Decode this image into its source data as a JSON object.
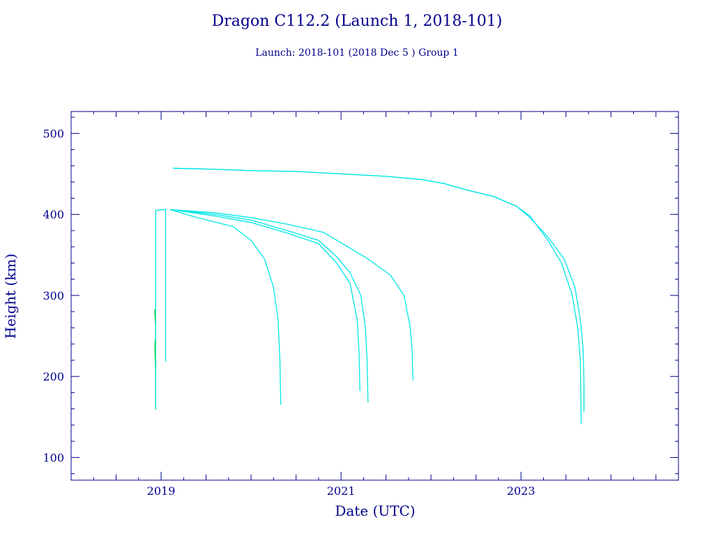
{
  "chart_data": {
    "type": "line",
    "title": "Dragon C112.2 (Launch 1, 2018-101)",
    "subtitle": "Launch: 2018-101  (2018 Dec  5 )  Group 1",
    "xlabel": "Date (UTC)",
    "ylabel": "Height (km)",
    "xlim": [
      2018.0,
      2024.75
    ],
    "ylim": [
      72,
      527
    ],
    "x_ticks": [
      2019,
      2021,
      2023
    ],
    "x_tick_labels": [
      "2019",
      "2021",
      "2023"
    ],
    "y_ticks": [
      100,
      200,
      300,
      400,
      500
    ],
    "y_tick_labels": [
      "100",
      "200",
      "300",
      "400",
      "500"
    ],
    "grid": false,
    "colors": {
      "axis": "#00008b",
      "text": "#00008b",
      "cyan": "#00e5e5",
      "green": "#00cc00"
    },
    "series": [
      {
        "color": "#00cc00",
        "points": [
          [
            2018.93,
            283
          ],
          [
            2018.93,
            278
          ],
          [
            2018.94,
            262
          ],
          [
            2018.94,
            248
          ],
          [
            2018.93,
            240
          ],
          [
            2018.94,
            200
          ],
          [
            2018.94,
            159
          ]
        ]
      },
      {
        "color": "#00e5e5",
        "points": [
          [
            2018.94,
            405
          ],
          [
            2018.94,
            159
          ]
        ]
      },
      {
        "color": "#00e5e5",
        "points": [
          [
            2018.94,
            405
          ],
          [
            2019.05,
            406
          ],
          [
            2019.05,
            218
          ]
        ]
      },
      {
        "color": "#00e5e5",
        "points": [
          [
            2019.13,
            457
          ],
          [
            2019.5,
            456
          ],
          [
            2020.0,
            454
          ],
          [
            2020.5,
            453
          ],
          [
            2021.0,
            450
          ],
          [
            2021.5,
            447
          ],
          [
            2021.9,
            443
          ],
          [
            2022.15,
            438
          ],
          [
            2022.4,
            430
          ],
          [
            2022.7,
            422
          ],
          [
            2022.95,
            410
          ],
          [
            2023.1,
            398
          ],
          [
            2023.3,
            368
          ],
          [
            2023.45,
            340
          ],
          [
            2023.57,
            300
          ],
          [
            2023.63,
            260
          ],
          [
            2023.66,
            220
          ],
          [
            2023.67,
            141
          ]
        ]
      },
      {
        "color": "#00e5e5",
        "points": [
          [
            2019.13,
            457
          ],
          [
            2019.5,
            456
          ],
          [
            2020.0,
            454
          ],
          [
            2020.5,
            453
          ],
          [
            2021.0,
            450
          ],
          [
            2021.5,
            447
          ],
          [
            2021.9,
            443
          ],
          [
            2022.15,
            438
          ],
          [
            2022.4,
            430
          ],
          [
            2022.7,
            422
          ],
          [
            2022.95,
            410
          ],
          [
            2023.1,
            396
          ],
          [
            2023.3,
            372
          ],
          [
            2023.48,
            345
          ],
          [
            2023.6,
            310
          ],
          [
            2023.66,
            270
          ],
          [
            2023.69,
            235
          ],
          [
            2023.7,
            195
          ],
          [
            2023.7,
            156
          ]
        ]
      },
      {
        "color": "#00e5e5",
        "points": [
          [
            2019.1,
            406
          ],
          [
            2019.4,
            396
          ],
          [
            2019.8,
            385
          ],
          [
            2020.0,
            368
          ],
          [
            2020.15,
            345
          ],
          [
            2020.25,
            310
          ],
          [
            2020.3,
            270
          ],
          [
            2020.32,
            220
          ],
          [
            2020.33,
            165
          ]
        ]
      },
      {
        "color": "#00e5e5",
        "points": [
          [
            2019.1,
            406
          ],
          [
            2019.6,
            398
          ],
          [
            2020.0,
            390
          ],
          [
            2020.4,
            377
          ],
          [
            2020.75,
            364
          ],
          [
            2020.95,
            340
          ],
          [
            2021.1,
            315
          ],
          [
            2021.18,
            270
          ],
          [
            2021.2,
            230
          ],
          [
            2021.21,
            182
          ]
        ]
      },
      {
        "color": "#00e5e5",
        "points": [
          [
            2019.1,
            406
          ],
          [
            2019.6,
            400
          ],
          [
            2020.0,
            393
          ],
          [
            2020.4,
            380
          ],
          [
            2020.75,
            368
          ],
          [
            2020.95,
            348
          ],
          [
            2021.1,
            328
          ],
          [
            2021.22,
            300
          ],
          [
            2021.27,
            260
          ],
          [
            2021.29,
            220
          ],
          [
            2021.3,
            168
          ]
        ]
      },
      {
        "color": "#00e5e5",
        "points": [
          [
            2019.1,
            406
          ],
          [
            2019.6,
            402
          ],
          [
            2020.0,
            396
          ],
          [
            2020.4,
            388
          ],
          [
            2020.8,
            378
          ],
          [
            2021.0,
            365
          ],
          [
            2021.3,
            345
          ],
          [
            2021.55,
            325
          ],
          [
            2021.7,
            300
          ],
          [
            2021.77,
            260
          ],
          [
            2021.79,
            230
          ],
          [
            2021.8,
            195
          ]
        ]
      }
    ]
  }
}
